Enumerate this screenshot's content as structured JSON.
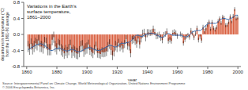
{
  "chart_data": {
    "type": "bar",
    "title": "Variations in the Earth's\nsurface temperature,\n1861–2000",
    "xlabel": "year",
    "ylabel": "departures in temperature (°C)\nfrom the 1961-90 average",
    "annotations": [
      "Source: Intergovernmental Panel on Climate Change, World Meteorological Organization, United Nations Environment Programme\n© 2006 Encyclopædia Britannica, Inc."
    ],
    "x": [
      1861,
      1862,
      1863,
      1864,
      1865,
      1866,
      1867,
      1868,
      1869,
      1870,
      1871,
      1872,
      1873,
      1874,
      1875,
      1876,
      1877,
      1878,
      1879,
      1880,
      1881,
      1882,
      1883,
      1884,
      1885,
      1886,
      1887,
      1888,
      1889,
      1890,
      1891,
      1892,
      1893,
      1894,
      1895,
      1896,
      1897,
      1898,
      1899,
      1900,
      1901,
      1902,
      1903,
      1904,
      1905,
      1906,
      1907,
      1908,
      1909,
      1910,
      1911,
      1912,
      1913,
      1914,
      1915,
      1916,
      1917,
      1918,
      1919,
      1920,
      1921,
      1922,
      1923,
      1924,
      1925,
      1926,
      1927,
      1928,
      1929,
      1930,
      1931,
      1932,
      1933,
      1934,
      1935,
      1936,
      1937,
      1938,
      1939,
      1940,
      1941,
      1942,
      1943,
      1944,
      1945,
      1946,
      1947,
      1948,
      1949,
      1950,
      1951,
      1952,
      1953,
      1954,
      1955,
      1956,
      1957,
      1958,
      1959,
      1960,
      1961,
      1962,
      1963,
      1964,
      1965,
      1966,
      1967,
      1968,
      1969,
      1970,
      1971,
      1972,
      1973,
      1974,
      1975,
      1976,
      1977,
      1978,
      1979,
      1980,
      1981,
      1982,
      1983,
      1984,
      1985,
      1986,
      1987,
      1988,
      1989,
      1990,
      1991,
      1992,
      1993,
      1994,
      1995,
      1996,
      1997,
      1998,
      1999,
      2000
    ],
    "series": [
      {
        "type": "bar",
        "color": "#d96040",
        "values": [
          -0.3,
          -0.37,
          -0.24,
          -0.36,
          -0.3,
          -0.22,
          -0.26,
          -0.15,
          -0.3,
          -0.3,
          -0.34,
          -0.2,
          -0.22,
          -0.38,
          -0.38,
          -0.38,
          -0.13,
          -0.07,
          -0.3,
          -0.36,
          -0.25,
          -0.28,
          -0.38,
          -0.42,
          -0.47,
          -0.4,
          -0.45,
          -0.38,
          -0.27,
          -0.45,
          -0.4,
          -0.44,
          -0.47,
          -0.48,
          -0.43,
          -0.3,
          -0.28,
          -0.42,
          -0.36,
          -0.34,
          -0.25,
          -0.39,
          -0.43,
          -0.47,
          -0.38,
          -0.3,
          -0.46,
          -0.47,
          -0.49,
          -0.44,
          -0.45,
          -0.44,
          -0.42,
          -0.31,
          -0.24,
          -0.39,
          -0.52,
          -0.43,
          -0.28,
          -0.32,
          -0.21,
          -0.32,
          -0.28,
          -0.35,
          -0.24,
          -0.12,
          -0.28,
          -0.3,
          -0.47,
          -0.14,
          -0.12,
          -0.16,
          -0.23,
          -0.1,
          -0.25,
          -0.1,
          0.02,
          0.04,
          -0.07,
          0.03,
          0.05,
          0.04,
          0.05,
          0.14,
          0.06,
          -0.04,
          -0.03,
          -0.01,
          -0.08,
          -0.14,
          -0.01,
          0.01,
          0.08,
          -0.16,
          -0.13,
          -0.16,
          0.04,
          0.06,
          0.03,
          -0.04,
          0.0,
          0.01,
          -0.02,
          -0.22,
          -0.13,
          -0.05,
          -0.02,
          -0.07,
          0.1,
          0.03,
          -0.08,
          0.02,
          0.16,
          -0.14,
          -0.05,
          -0.15,
          0.18,
          0.08,
          0.16,
          0.25,
          0.32,
          0.14,
          0.31,
          0.16,
          0.12,
          0.18,
          0.33,
          0.4,
          0.29,
          0.44,
          0.41,
          0.23,
          0.24,
          0.31,
          0.45,
          0.33,
          0.46,
          0.63,
          0.4,
          0.42
        ],
        "error": [
          0.14,
          0.14,
          0.14,
          0.14,
          0.14,
          0.14,
          0.14,
          0.14,
          0.14,
          0.14,
          0.14,
          0.14,
          0.14,
          0.14,
          0.14,
          0.14,
          0.14,
          0.14,
          0.14,
          0.14,
          0.14,
          0.14,
          0.14,
          0.14,
          0.14,
          0.14,
          0.14,
          0.14,
          0.14,
          0.14,
          0.14,
          0.14,
          0.14,
          0.14,
          0.14,
          0.14,
          0.14,
          0.14,
          0.14,
          0.14,
          0.12,
          0.12,
          0.12,
          0.12,
          0.12,
          0.12,
          0.12,
          0.12,
          0.12,
          0.12,
          0.12,
          0.12,
          0.12,
          0.12,
          0.12,
          0.12,
          0.12,
          0.12,
          0.12,
          0.12,
          0.1,
          0.1,
          0.1,
          0.1,
          0.1,
          0.1,
          0.1,
          0.1,
          0.1,
          0.1,
          0.1,
          0.1,
          0.1,
          0.1,
          0.1,
          0.1,
          0.1,
          0.1,
          0.1,
          0.1,
          0.08,
          0.08,
          0.08,
          0.08,
          0.08,
          0.08,
          0.08,
          0.08,
          0.08,
          0.08,
          0.07,
          0.07,
          0.07,
          0.07,
          0.07,
          0.07,
          0.07,
          0.07,
          0.07,
          0.07,
          0.06,
          0.06,
          0.06,
          0.06,
          0.06,
          0.06,
          0.06,
          0.06,
          0.06,
          0.06,
          0.06,
          0.06,
          0.06,
          0.06,
          0.06,
          0.06,
          0.06,
          0.06,
          0.06,
          0.06,
          0.05,
          0.05,
          0.05,
          0.05,
          0.05,
          0.05,
          0.05,
          0.05,
          0.05,
          0.05,
          0.05,
          0.05,
          0.05,
          0.05,
          0.05,
          0.05,
          0.05,
          0.05,
          0.05,
          0.05
        ]
      },
      {
        "type": "line",
        "color": "#3366aa",
        "values": [
          -0.38,
          -0.36,
          -0.33,
          -0.31,
          -0.29,
          -0.27,
          -0.25,
          -0.24,
          -0.23,
          -0.24,
          -0.26,
          -0.28,
          -0.31,
          -0.34,
          -0.38,
          -0.4,
          -0.4,
          -0.38,
          -0.36,
          -0.35,
          -0.34,
          -0.34,
          -0.36,
          -0.38,
          -0.4,
          -0.41,
          -0.41,
          -0.4,
          -0.38,
          -0.37,
          -0.38,
          -0.4,
          -0.42,
          -0.43,
          -0.43,
          -0.42,
          -0.4,
          -0.38,
          -0.36,
          -0.34,
          -0.33,
          -0.33,
          -0.34,
          -0.36,
          -0.38,
          -0.39,
          -0.4,
          -0.4,
          -0.39,
          -0.37,
          -0.35,
          -0.33,
          -0.31,
          -0.29,
          -0.27,
          -0.27,
          -0.29,
          -0.31,
          -0.31,
          -0.3,
          -0.27,
          -0.24,
          -0.22,
          -0.22,
          -0.22,
          -0.21,
          -0.2,
          -0.19,
          -0.17,
          -0.13,
          -0.08,
          -0.04,
          -0.02,
          -0.02,
          -0.04,
          -0.05,
          -0.04,
          -0.02,
          -0.0,
          0.01,
          0.02,
          0.03,
          0.03,
          0.02,
          0.01,
          -0.01,
          -0.03,
          -0.05,
          -0.07,
          -0.07,
          -0.05,
          -0.02,
          0.01,
          0.02,
          0.01,
          -0.01,
          -0.02,
          -0.02,
          -0.02,
          -0.02,
          -0.02,
          -0.02,
          -0.03,
          -0.05,
          -0.06,
          -0.06,
          -0.04,
          -0.01,
          0.03,
          0.06,
          0.08,
          0.09,
          0.1,
          0.1,
          0.1,
          0.12,
          0.16,
          0.2,
          0.23,
          0.26,
          0.28,
          0.28,
          0.28,
          0.28,
          0.28,
          0.29,
          0.32,
          0.36,
          0.38,
          0.4,
          0.4,
          0.39,
          0.38,
          0.38,
          0.4,
          0.41,
          0.43,
          0.47,
          0.48,
          0.48
        ]
      }
    ],
    "xlim": [
      1858,
      2002
    ],
    "xticks": [
      1860,
      1880,
      1900,
      1920,
      1940,
      1960,
      1980,
      2000
    ],
    "ylim": [
      -0.8,
      0.8
    ],
    "yticks": [
      -0.8,
      -0.4,
      {
        "value": 0,
        "label": "0.0"
      },
      0.4,
      0.8
    ]
  }
}
